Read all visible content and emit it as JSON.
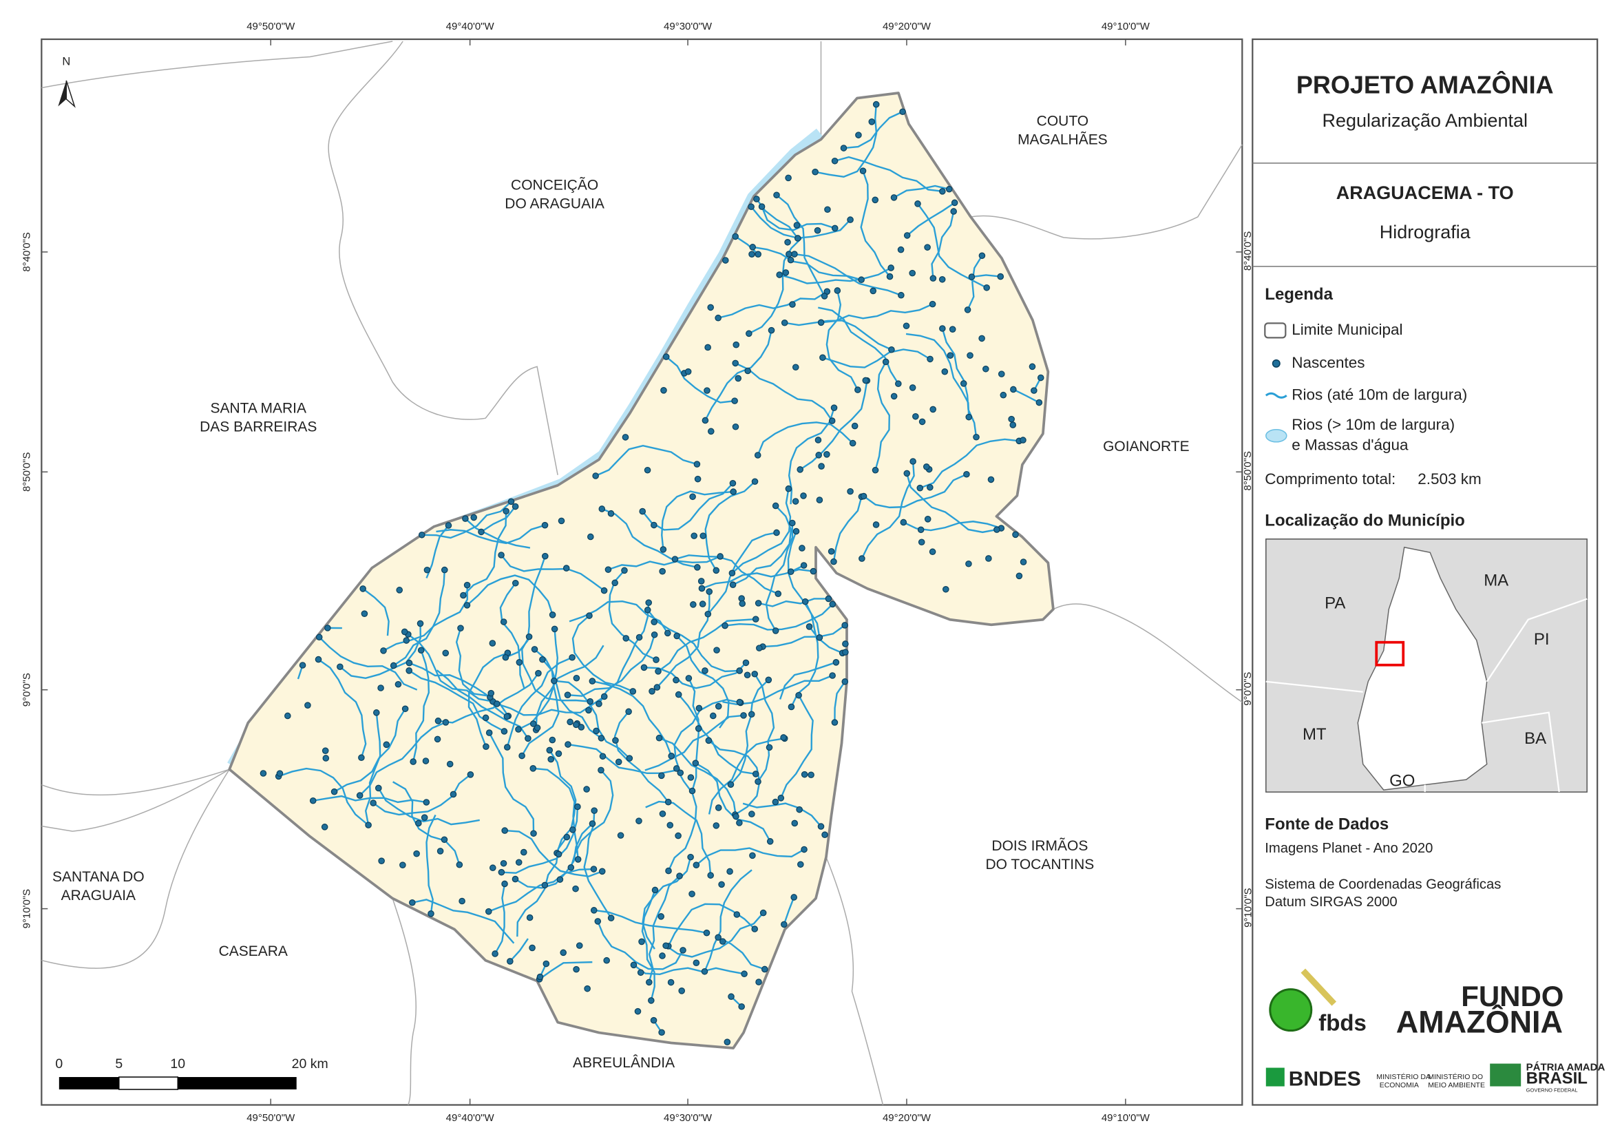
{
  "map": {
    "graticule": {
      "x": [
        "49°50'0\"W",
        "49°40'0\"W",
        "49°30'0\"W",
        "49°20'0\"W",
        "49°10'0\"W"
      ],
      "y": [
        "8°40'0\"S",
        "8°50'0\"S",
        "9°0'0\"S",
        "9°10'0\"S"
      ]
    },
    "north": "N",
    "places": [
      {
        "lines": [
          "CONCEIÇÃO",
          "DO ARAGUAIA"
        ]
      },
      {
        "lines": [
          "COUTO",
          "MAGALHÃES"
        ]
      },
      {
        "lines": [
          "SANTA MARIA",
          "DAS BARREIRAS"
        ]
      },
      {
        "lines": [
          "GOIANORTE"
        ]
      },
      {
        "lines": [
          "DOIS IRMÃOS",
          "DO TOCANTINS"
        ]
      },
      {
        "lines": [
          "SANTANA DO",
          "ARAGUAIA"
        ]
      },
      {
        "lines": [
          "CASEARA"
        ]
      },
      {
        "lines": [
          "ABREULÂNDIA"
        ]
      }
    ],
    "scale_bar": [
      "0",
      "5",
      "10",
      "20 km"
    ]
  },
  "panel": {
    "title": "PROJETO AMAZÔNIA",
    "subtitle": "Regularização Ambiental",
    "municipality": "ARAGUACEMA - TO",
    "theme": "Hidrografia",
    "legend": {
      "title": "Legenda",
      "items": [
        {
          "lines": [
            "Limite Municipal"
          ]
        },
        {
          "lines": [
            "Nascentes"
          ]
        },
        {
          "lines": [
            "Rios (até 10m de largura)"
          ]
        },
        {
          "lines": [
            "Rios (> 10m de largura)",
            "e Massas d'água"
          ]
        }
      ],
      "total_label": "Comprimento total:",
      "total_value": "2.503 km"
    },
    "location": {
      "title": "Localização do Município",
      "states": [
        "PA",
        "MA",
        "PI",
        "MT",
        "BA",
        "GO"
      ]
    },
    "sources": {
      "title": "Fonte de Dados",
      "lines": [
        "Imagens Planet - Ano 2020",
        "Sistema de Coordenadas Geográficas",
        "Datum SIRGAS 2000"
      ]
    },
    "logos": [
      "fbds",
      "FUNDO",
      "AMAZÔNIA",
      "BNDES",
      "MINISTÉRIO DA",
      "ECONOMIA",
      "MINISTÉRIO DO",
      "MEIO AMBIENTE",
      "PÁTRIA AMADA",
      "BRASIL",
      "GOVERNO FEDERAL"
    ]
  }
}
